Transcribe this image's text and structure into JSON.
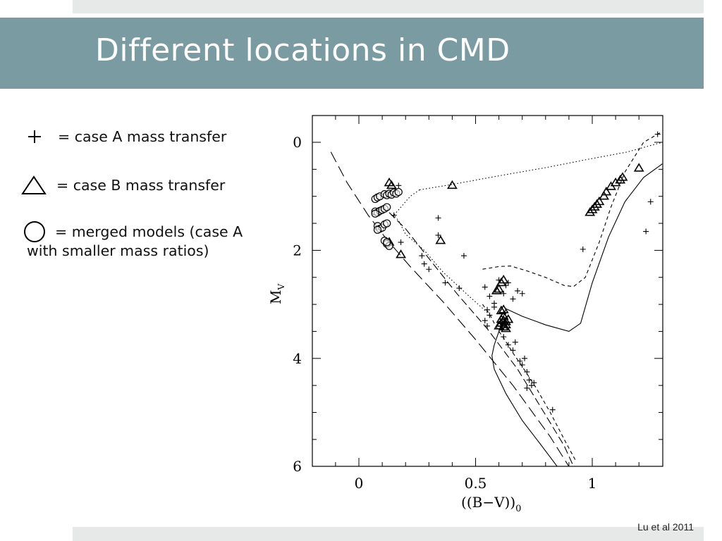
{
  "slide": {
    "title": "Different locations in CMD",
    "citation": "Lu et al 2011"
  },
  "legend": {
    "case_a": "= case A mass transfer",
    "case_b": "= case B mass transfer",
    "merged_line1": "= merged models (case A",
    "merged_line2": "with smaller mass ratios)"
  },
  "colors": {
    "title_bar": "#7b9ba3",
    "strip": "#e6e9e8"
  },
  "chart_data": {
    "type": "scatter",
    "xlabel": "(B−V)",
    "xlabel_sub": "0",
    "ylabel": "M",
    "ylabel_sub": "V",
    "xlim": [
      -0.2,
      1.3
    ],
    "ylim": [
      6,
      -0.5
    ],
    "y_inverted": true,
    "xticks": [
      0,
      0.5,
      1
    ],
    "xtick_labels": [
      "0",
      "0.5",
      "1"
    ],
    "yticks": [
      0,
      2,
      4,
      6
    ],
    "ytick_labels": [
      "0",
      "2",
      "4",
      "6"
    ],
    "series": [
      {
        "marker": "plus",
        "points": [
          [
            0.17,
            0.8
          ],
          [
            0.15,
            1.35
          ],
          [
            0.18,
            1.85
          ],
          [
            0.34,
            1.4
          ],
          [
            0.34,
            1.72
          ],
          [
            0.45,
            2.1
          ],
          [
            0.27,
            2.1
          ],
          [
            0.28,
            2.25
          ],
          [
            0.3,
            2.35
          ],
          [
            0.37,
            2.6
          ],
          [
            0.43,
            2.7
          ],
          [
            0.54,
            2.68
          ],
          [
            0.56,
            2.85
          ],
          [
            0.58,
            2.98
          ],
          [
            0.55,
            3.1
          ],
          [
            0.56,
            3.2
          ],
          [
            0.54,
            3.3
          ],
          [
            0.55,
            3.4
          ],
          [
            0.58,
            3.05
          ],
          [
            0.6,
            2.55
          ],
          [
            0.62,
            2.8
          ],
          [
            0.63,
            2.65
          ],
          [
            0.64,
            2.6
          ],
          [
            0.66,
            2.9
          ],
          [
            0.68,
            2.75
          ],
          [
            0.7,
            2.8
          ],
          [
            0.62,
            3.6
          ],
          [
            0.64,
            3.75
          ],
          [
            0.66,
            3.85
          ],
          [
            0.67,
            3.7
          ],
          [
            0.69,
            4.05
          ],
          [
            0.7,
            4.12
          ],
          [
            0.71,
            4.0
          ],
          [
            0.72,
            4.25
          ],
          [
            0.73,
            4.4
          ],
          [
            0.74,
            4.5
          ],
          [
            0.72,
            4.55
          ],
          [
            0.75,
            4.45
          ],
          [
            0.83,
            4.95
          ],
          [
            0.96,
            1.98
          ],
          [
            1.25,
            1.1
          ],
          [
            1.23,
            1.65
          ],
          [
            1.28,
            -0.15
          ]
        ]
      },
      {
        "marker": "triangle",
        "points": [
          [
            0.13,
            0.75
          ],
          [
            0.14,
            0.8
          ],
          [
            0.18,
            2.08
          ],
          [
            0.4,
            0.8
          ],
          [
            0.35,
            1.82
          ],
          [
            0.13,
            1.85
          ],
          [
            0.59,
            2.75
          ],
          [
            0.6,
            2.72
          ],
          [
            0.61,
            2.6
          ],
          [
            0.62,
            2.55
          ],
          [
            0.61,
            3.12
          ],
          [
            0.62,
            3.1
          ],
          [
            0.62,
            3.22
          ],
          [
            0.61,
            3.28
          ],
          [
            0.62,
            3.3
          ],
          [
            0.63,
            3.32
          ],
          [
            0.61,
            3.35
          ],
          [
            0.63,
            3.38
          ],
          [
            0.62,
            3.42
          ],
          [
            0.64,
            3.28
          ],
          [
            0.6,
            3.4
          ],
          [
            0.63,
            3.45
          ],
          [
            0.99,
            1.3
          ],
          [
            1.0,
            1.25
          ],
          [
            1.01,
            1.2
          ],
          [
            1.02,
            1.15
          ],
          [
            1.03,
            1.1
          ],
          [
            1.05,
            1.0
          ],
          [
            1.06,
            0.92
          ],
          [
            1.08,
            0.82
          ],
          [
            1.1,
            0.75
          ],
          [
            1.12,
            0.7
          ],
          [
            1.13,
            0.65
          ],
          [
            1.2,
            0.48
          ]
        ]
      },
      {
        "marker": "circle",
        "points": [
          [
            0.07,
            1.05
          ],
          [
            0.08,
            1.02
          ],
          [
            0.09,
            1.0
          ],
          [
            0.11,
            0.96
          ],
          [
            0.12,
            0.98
          ],
          [
            0.13,
            0.95
          ],
          [
            0.14,
            0.97
          ],
          [
            0.15,
            0.93
          ],
          [
            0.16,
            0.95
          ],
          [
            0.17,
            0.92
          ],
          [
            0.07,
            1.28
          ],
          [
            0.08,
            1.3
          ],
          [
            0.09,
            1.27
          ],
          [
            0.1,
            1.25
          ],
          [
            0.11,
            1.23
          ],
          [
            0.12,
            1.2
          ],
          [
            0.07,
            1.32
          ],
          [
            0.08,
            1.55
          ],
          [
            0.09,
            1.6
          ],
          [
            0.1,
            1.58
          ],
          [
            0.11,
            1.52
          ],
          [
            0.12,
            1.5
          ],
          [
            0.08,
            1.62
          ],
          [
            0.11,
            1.82
          ],
          [
            0.12,
            1.88
          ],
          [
            0.13,
            1.92
          ],
          [
            0.12,
            1.85
          ]
        ]
      }
    ],
    "curves": [
      {
        "style": "long-dash",
        "points": [
          [
            -0.12,
            0.18
          ],
          [
            -0.05,
            0.75
          ],
          [
            0.04,
            1.35
          ],
          [
            0.12,
            1.8
          ],
          [
            0.22,
            2.3
          ],
          [
            0.36,
            2.95
          ],
          [
            0.5,
            3.65
          ],
          [
            0.66,
            4.5
          ],
          [
            0.82,
            5.45
          ],
          [
            0.9,
            6.0
          ]
        ]
      },
      {
        "style": "medium-dash",
        "points": [
          [
            0.13,
            1.3
          ],
          [
            0.2,
            1.6
          ],
          [
            0.3,
            2.15
          ],
          [
            0.42,
            2.8
          ],
          [
            0.55,
            3.45
          ],
          [
            0.68,
            4.2
          ],
          [
            0.8,
            5.05
          ],
          [
            0.88,
            5.62
          ],
          [
            0.92,
            6.0
          ]
        ]
      },
      {
        "style": "short-dash",
        "points": [
          [
            0.53,
            2.35
          ],
          [
            0.6,
            2.3
          ],
          [
            0.65,
            2.29
          ],
          [
            0.72,
            2.38
          ],
          [
            0.8,
            2.5
          ],
          [
            0.88,
            2.65
          ],
          [
            0.92,
            2.67
          ],
          [
            0.97,
            2.5
          ],
          [
            1.03,
            1.85
          ],
          [
            1.08,
            1.2
          ],
          [
            1.14,
            0.55
          ],
          [
            1.22,
            0.0
          ],
          [
            1.3,
            -0.2
          ]
        ]
      },
      {
        "style": "short-dash",
        "points": [
          [
            0.53,
            3.0
          ],
          [
            0.56,
            3.18
          ],
          [
            0.58,
            3.35
          ],
          [
            0.6,
            3.5
          ],
          [
            0.62,
            3.62
          ],
          [
            0.66,
            3.9
          ],
          [
            0.7,
            4.15
          ],
          [
            0.76,
            4.55
          ],
          [
            0.82,
            5.0
          ],
          [
            0.88,
            5.5
          ],
          [
            0.93,
            5.9
          ]
        ]
      },
      {
        "style": "solid",
        "points": [
          [
            0.63,
            3.08
          ],
          [
            0.7,
            3.22
          ],
          [
            0.8,
            3.38
          ],
          [
            0.9,
            3.5
          ],
          [
            0.95,
            3.35
          ],
          [
            1.0,
            2.6
          ],
          [
            1.07,
            1.75
          ],
          [
            1.14,
            1.1
          ],
          [
            1.22,
            0.65
          ],
          [
            1.3,
            0.4
          ]
        ]
      },
      {
        "style": "solid",
        "points": [
          [
            0.63,
            3.08
          ],
          [
            0.6,
            3.5
          ],
          [
            0.58,
            3.75
          ],
          [
            0.57,
            3.95
          ],
          [
            0.58,
            4.2
          ],
          [
            0.63,
            4.65
          ],
          [
            0.7,
            5.15
          ],
          [
            0.78,
            5.6
          ],
          [
            0.85,
            6.0
          ]
        ]
      },
      {
        "style": "dotted",
        "points": [
          [
            0.26,
            0.88
          ],
          [
            0.4,
            0.78
          ],
          [
            0.6,
            0.62
          ],
          [
            0.8,
            0.47
          ],
          [
            1.0,
            0.3
          ],
          [
            1.15,
            0.18
          ],
          [
            1.3,
            0.0
          ]
        ]
      },
      {
        "style": "dotted",
        "points": [
          [
            0.26,
            0.88
          ],
          [
            0.22,
            1.0
          ],
          [
            0.18,
            1.2
          ],
          [
            0.15,
            1.35
          ],
          [
            0.17,
            1.45
          ],
          [
            0.2,
            1.7
          ],
          [
            0.28,
            2.0
          ],
          [
            0.36,
            2.4
          ],
          [
            0.46,
            2.8
          ],
          [
            0.55,
            3.15
          ]
        ]
      }
    ]
  }
}
